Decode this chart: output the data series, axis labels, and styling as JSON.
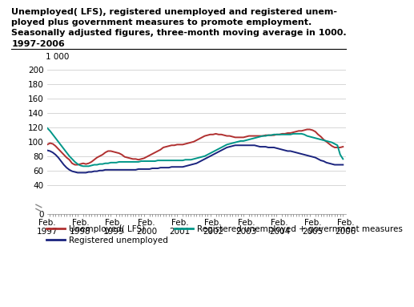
{
  "title": "Unemployed( LFS), registered unemployed and registered unem-\nployed plus government measures to promote employment.\nSeasonally adjusted figures, three-month moving average in 1000.\n1997-2006",
  "ylim": [
    0,
    210
  ],
  "yticks": [
    0,
    40,
    60,
    80,
    100,
    120,
    140,
    160,
    180,
    200
  ],
  "ytick_label_top": "1 000",
  "xlabel_years": [
    "Feb.\n1997",
    "Feb.\n1998",
    "Feb.\n1999",
    "Feb.\n2000",
    "Feb.\n2001",
    "Feb.\n2002",
    "Feb.\n2003",
    "Feb.\n2004",
    "Feb.\n2005",
    "Feb.\n2006"
  ],
  "x_positions": [
    0,
    12,
    24,
    36,
    48,
    60,
    72,
    84,
    96,
    108
  ],
  "color_lfs": "#b03030",
  "color_reg": "#1a237e",
  "color_gov": "#009688",
  "bg_color": "#ffffff",
  "grid_color": "#d0d0d0",
  "lfs_data": [
    96,
    98,
    97,
    94,
    90,
    86,
    82,
    78,
    75,
    70,
    68,
    68,
    69,
    70,
    69,
    70,
    72,
    75,
    78,
    80,
    82,
    85,
    87,
    87,
    86,
    85,
    84,
    82,
    79,
    78,
    77,
    76,
    76,
    75,
    76,
    77,
    79,
    81,
    83,
    85,
    87,
    89,
    92,
    93,
    94,
    95,
    95,
    96,
    96,
    96,
    97,
    98,
    99,
    100,
    102,
    104,
    106,
    108,
    109,
    110,
    110,
    111,
    110,
    110,
    109,
    108,
    108,
    107,
    106,
    106,
    106,
    106,
    107,
    108,
    108,
    108,
    108,
    108,
    108,
    109,
    109,
    109,
    109,
    110,
    110,
    111,
    111,
    112,
    112,
    113,
    114,
    115,
    115,
    116,
    117,
    117,
    116,
    114,
    110,
    107,
    103,
    100,
    97,
    94,
    92,
    92,
    92,
    93
  ],
  "reg_data": [
    88,
    87,
    85,
    82,
    78,
    73,
    68,
    64,
    61,
    59,
    58,
    57,
    57,
    57,
    57,
    58,
    58,
    59,
    59,
    60,
    60,
    61,
    61,
    61,
    61,
    61,
    61,
    61,
    61,
    61,
    61,
    61,
    61,
    62,
    62,
    62,
    62,
    62,
    63,
    63,
    63,
    64,
    64,
    64,
    64,
    65,
    65,
    65,
    65,
    65,
    66,
    67,
    68,
    69,
    70,
    72,
    74,
    76,
    78,
    80,
    82,
    84,
    86,
    88,
    90,
    92,
    93,
    94,
    95,
    95,
    95,
    95,
    95,
    95,
    95,
    95,
    94,
    93,
    93,
    93,
    92,
    92,
    92,
    91,
    90,
    89,
    88,
    87,
    87,
    86,
    85,
    84,
    83,
    82,
    81,
    80,
    79,
    78,
    76,
    74,
    73,
    71,
    70,
    69,
    68,
    68,
    68,
    68
  ],
  "gov_data": [
    119,
    115,
    110,
    105,
    100,
    95,
    90,
    85,
    80,
    76,
    72,
    69,
    67,
    66,
    66,
    66,
    67,
    68,
    68,
    69,
    69,
    70,
    70,
    71,
    71,
    71,
    72,
    72,
    72,
    72,
    72,
    72,
    72,
    72,
    73,
    73,
    73,
    73,
    73,
    73,
    74,
    74,
    74,
    74,
    74,
    74,
    74,
    74,
    74,
    74,
    75,
    75,
    75,
    76,
    77,
    78,
    79,
    80,
    82,
    84,
    86,
    88,
    90,
    92,
    94,
    96,
    97,
    98,
    99,
    100,
    101,
    101,
    102,
    103,
    104,
    105,
    106,
    107,
    108,
    108,
    109,
    109,
    110,
    110,
    110,
    110,
    110,
    110,
    110,
    111,
    111,
    111,
    111,
    110,
    108,
    107,
    106,
    105,
    104,
    103,
    102,
    101,
    100,
    99,
    97,
    95,
    82,
    76
  ],
  "legend_entries": [
    "Unemployed( LFS)",
    "Registered unemployed",
    "Registered unemployed + government measures"
  ]
}
